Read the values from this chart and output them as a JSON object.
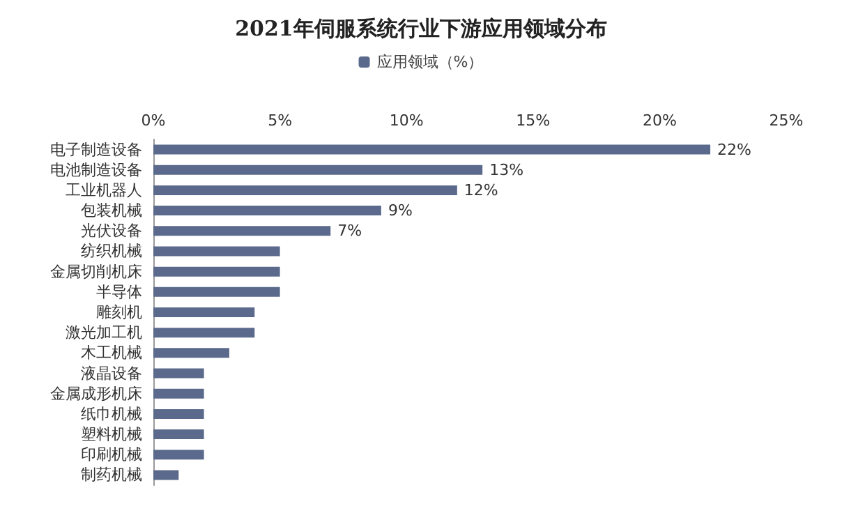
{
  "chart_data": {
    "type": "bar",
    "orientation": "horizontal",
    "title": "2021年伺服系统行业下游应用领域分布",
    "categories": [
      "电子制造设备",
      "电池制造设备",
      "工业机器人",
      "包装机械",
      "光伏设备",
      "纺织机械",
      "金属切削机床",
      "半导体",
      "雕刻机",
      "激光加工机",
      "木工机械",
      "液晶设备",
      "金属成形机床",
      "纸巾机械",
      "塑料机械",
      "印刷机械",
      "制药机械"
    ],
    "series": [
      {
        "name": "应用领域（%）",
        "color": "#5b6a8c",
        "values": [
          22,
          13,
          12,
          9,
          7,
          5,
          5,
          5,
          4,
          4,
          3,
          2,
          2,
          2,
          2,
          2,
          1
        ],
        "value_labels": [
          "22%",
          "13%",
          "12%",
          "9%",
          "7%",
          null,
          null,
          null,
          null,
          null,
          null,
          null,
          null,
          null,
          null,
          null,
          null
        ]
      }
    ],
    "xlim": [
      0,
      25
    ],
    "xticks": [
      {
        "value": 0,
        "label": "0%"
      },
      {
        "value": 5,
        "label": "5%"
      },
      {
        "value": 10,
        "label": "10%"
      },
      {
        "value": 15,
        "label": "15%"
      },
      {
        "value": 20,
        "label": "20%"
      },
      {
        "value": 25,
        "label": "25%"
      }
    ],
    "legend": "top",
    "grid": false
  }
}
